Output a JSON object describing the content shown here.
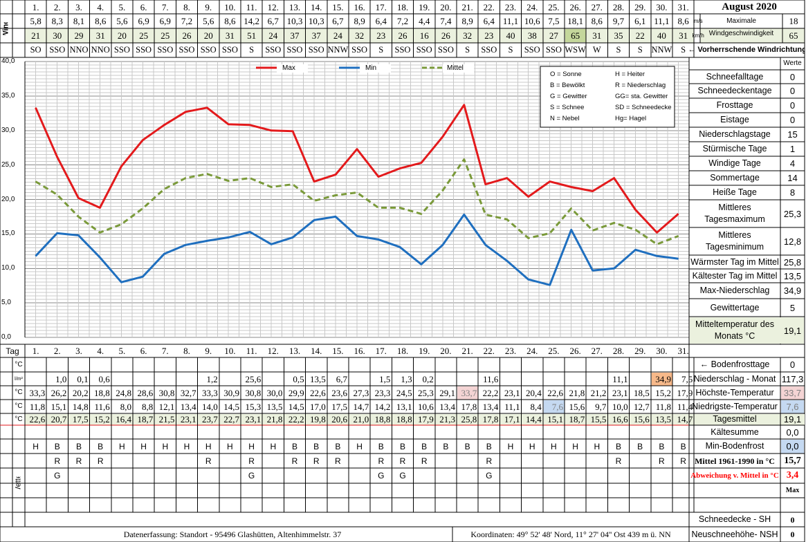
{
  "header": {
    "wind_label": "Wind",
    "days": [
      "1.",
      "2.",
      "3.",
      "4.",
      "5.",
      "6.",
      "7.",
      "8.",
      "9.",
      "10.",
      "11.",
      "12.",
      "13.",
      "14.",
      "15.",
      "16.",
      "17.",
      "18.",
      "19.",
      "20.",
      "21.",
      "22.",
      "23.",
      "24.",
      "25.",
      "26.",
      "27.",
      "28.",
      "29.",
      "30.",
      "31."
    ],
    "wind_ms": [
      "5,8",
      "8,3",
      "8,1",
      "8,6",
      "5,6",
      "6,9",
      "6,9",
      "7,2",
      "5,6",
      "8,6",
      "14,2",
      "6,7",
      "10,3",
      "10,3",
      "6,7",
      "8,9",
      "6,4",
      "7,2",
      "4,4",
      "7,4",
      "8,9",
      "6,4",
      "11,1",
      "10,6",
      "7,5",
      "18,1",
      "8,6",
      "9,7",
      "6,1",
      "11,1",
      "8,6"
    ],
    "wind_kmh": [
      "21",
      "30",
      "29",
      "31",
      "20",
      "25",
      "25",
      "26",
      "20",
      "31",
      "51",
      "24",
      "37",
      "37",
      "24",
      "32",
      "23",
      "26",
      "16",
      "26",
      "32",
      "23",
      "40",
      "38",
      "27",
      "65",
      "31",
      "35",
      "22",
      "40",
      "31"
    ],
    "wind_dir": [
      "SO",
      "SSO",
      "NNO",
      "NNO",
      "SSO",
      "SSO",
      "SSO",
      "SSO",
      "SSO",
      "SSO",
      "S",
      "SSO",
      "SSO",
      "SSO",
      "NNW",
      "SSO",
      "S",
      "SSO",
      "SSO",
      "SSO",
      "S",
      "SSO",
      "S",
      "SSO",
      "SSO",
      "WSW",
      "W",
      "S",
      "S",
      "NNW",
      "S"
    ],
    "title": "August 2020",
    "unit_ms": "m/s",
    "unit_kmh": "km/h",
    "max_wind_label_1": "Maximale",
    "max_wind_label_2": "Windgeschwindigkeit",
    "max_wind_ms": "18",
    "max_wind_kmh": "65",
    "prevailing_dir_label": "← Vorherrschende Windrichtung"
  },
  "legend": {
    "max": "Max",
    "min": "Min",
    "mittel": "Mittel",
    "codes": [
      [
        "O = Sonne",
        "H = Heiter"
      ],
      [
        "B = Bewölkt",
        "R = Niederschlag"
      ],
      [
        "G = Gewitter",
        "GG= sta. Gewitter"
      ],
      [
        "S = Schnee",
        "SD = Schneedecke"
      ],
      [
        "N = Nebel",
        "Hg= Hagel"
      ]
    ]
  },
  "chart_data": {
    "type": "line",
    "x": [
      1,
      2,
      3,
      4,
      5,
      6,
      7,
      8,
      9,
      10,
      11,
      12,
      13,
      14,
      15,
      16,
      17,
      18,
      19,
      20,
      21,
      22,
      23,
      24,
      25,
      26,
      27,
      28,
      29,
      30,
      31
    ],
    "xlabel": "Tag",
    "ylim": [
      0,
      40
    ],
    "yticks": [
      "0,0",
      "5,0",
      "10,0",
      "15,0",
      "20,0",
      "25,0",
      "30,0",
      "35,0",
      "40,0"
    ],
    "grid": true,
    "legend_position": "top",
    "series": [
      {
        "name": "Max",
        "color": "#e31a1c",
        "dashed": false,
        "values": [
          33.3,
          26.2,
          20.2,
          18.8,
          24.8,
          28.6,
          30.8,
          32.7,
          33.3,
          30.9,
          30.8,
          30.0,
          29.9,
          22.6,
          23.6,
          27.3,
          23.3,
          24.5,
          25.3,
          29.1,
          33.7,
          22.2,
          23.1,
          20.4,
          22.6,
          21.8,
          21.2,
          23.1,
          18.5,
          15.2,
          17.9
        ]
      },
      {
        "name": "Min",
        "color": "#1f6fbf",
        "dashed": false,
        "values": [
          11.8,
          15.1,
          14.8,
          11.6,
          8.0,
          8.8,
          12.1,
          13.4,
          14.0,
          14.5,
          15.3,
          13.5,
          14.5,
          17.0,
          17.5,
          14.7,
          14.2,
          13.1,
          10.6,
          13.4,
          17.8,
          13.4,
          11.1,
          8.4,
          7.6,
          15.6,
          9.7,
          10.0,
          12.7,
          11.8,
          11.4
        ]
      },
      {
        "name": "Mittel",
        "color": "#7a9a3a",
        "dashed": true,
        "values": [
          22.6,
          20.7,
          17.5,
          15.2,
          16.4,
          18.7,
          21.5,
          23.1,
          23.7,
          22.7,
          23.1,
          21.8,
          22.2,
          19.8,
          20.6,
          21.0,
          18.8,
          18.8,
          17.9,
          21.3,
          25.8,
          17.8,
          17.1,
          14.4,
          15.1,
          18.7,
          15.5,
          16.6,
          15.6,
          13.5,
          14.7
        ]
      }
    ]
  },
  "summary": {
    "werte_label": "Werte",
    "rows": [
      {
        "label": "Schneefalltage",
        "value": "0"
      },
      {
        "label": "Schneedeckentage",
        "value": "0"
      },
      {
        "label": "Frosttage",
        "value": "0"
      },
      {
        "label": "Eistage",
        "value": "0"
      },
      {
        "label": "Niederschlagstage",
        "value": "15"
      },
      {
        "label": "Stürmische Tage",
        "value": "1"
      },
      {
        "label": "Windige Tage",
        "value": "4"
      },
      {
        "label": "Sommertage",
        "value": "14"
      },
      {
        "label": "Heiße Tage",
        "value": "8"
      },
      {
        "label": "Mittleres\nTagesmaximum",
        "value": "25,3"
      },
      {
        "label": "Mittleres\nTagesminimum",
        "value": "12,8"
      },
      {
        "label": "Wärmster Tag im Mittel",
        "value": "25,8"
      },
      {
        "label": "Kältester Tag im Mittel",
        "value": "13,5"
      },
      {
        "label": "Max-Niederschlag",
        "value": "34,9"
      },
      {
        "label": "Gewittertage",
        "value": "5"
      },
      {
        "label": "Mitteltemperatur des\nMonats °C",
        "value": "19,1"
      }
    ]
  },
  "table": {
    "tag_label": "Tag",
    "days": [
      "1.",
      "2.",
      "3.",
      "4.",
      "5.",
      "6.",
      "7.",
      "8.",
      "9.",
      "10.",
      "11.",
      "12.",
      "13.",
      "14.",
      "15.",
      "16.",
      "17.",
      "18.",
      "19.",
      "20.",
      "21.",
      "22.",
      "23.",
      "24.",
      "25.",
      "26.",
      "27.",
      "28.",
      "29.",
      "30.",
      "31."
    ],
    "unit_c": "°C",
    "unit_lm2": "l/m²",
    "precip": [
      "",
      "1,0",
      "0,1",
      "0,6",
      "",
      "",
      "",
      "",
      "1,2",
      "",
      "25,6",
      "",
      "0,5",
      "13,5",
      "6,7",
      "",
      "1,5",
      "1,3",
      "0,2",
      "",
      "",
      "11,6",
      "",
      "",
      "",
      "",
      "",
      "11,1",
      "",
      "34,9",
      "7,5"
    ],
    "tmax": [
      "33,3",
      "26,2",
      "20,2",
      "18,8",
      "24,8",
      "28,6",
      "30,8",
      "32,7",
      "33,3",
      "30,9",
      "30,8",
      "30,0",
      "29,9",
      "22,6",
      "23,6",
      "27,3",
      "23,3",
      "24,5",
      "25,3",
      "29,1",
      "33,7",
      "22,2",
      "23,1",
      "20,4",
      "22,6",
      "21,8",
      "21,2",
      "23,1",
      "18,5",
      "15,2",
      "17,9"
    ],
    "tmin": [
      "11,8",
      "15,1",
      "14,8",
      "11,6",
      "8,0",
      "8,8",
      "12,1",
      "13,4",
      "14,0",
      "14,5",
      "15,3",
      "13,5",
      "14,5",
      "17,0",
      "17,5",
      "14,7",
      "14,2",
      "13,1",
      "10,6",
      "13,4",
      "17,8",
      "13,4",
      "11,1",
      "8,4",
      "7,6",
      "15,6",
      "9,7",
      "10,0",
      "12,7",
      "11,8",
      "11,4"
    ],
    "tmean": [
      "22,6",
      "20,7",
      "17,5",
      "15,2",
      "16,4",
      "18,7",
      "21,5",
      "23,1",
      "23,7",
      "22,7",
      "23,1",
      "21,8",
      "22,2",
      "19,8",
      "20,6",
      "21,0",
      "18,8",
      "18,8",
      "17,9",
      "21,3",
      "25,8",
      "17,8",
      "17,1",
      "14,4",
      "15,1",
      "18,7",
      "15,5",
      "16,6",
      "15,6",
      "13,5",
      "14,7"
    ],
    "weather1": [
      "H",
      "B",
      "B",
      "B",
      "H",
      "H",
      "H",
      "H",
      "H",
      "H",
      "H",
      "H",
      "B",
      "B",
      "B",
      "H",
      "B",
      "B",
      "B",
      "B",
      "B",
      "B",
      "H",
      "H",
      "H",
      "H",
      "H",
      "B",
      "B",
      "B",
      "B"
    ],
    "weather2": [
      "",
      "R",
      "R",
      "R",
      "",
      "",
      "",
      "",
      "R",
      "",
      "R",
      "",
      "R",
      "R",
      "R",
      "",
      "R",
      "R",
      "R",
      "",
      "",
      "R",
      "",
      "",
      "",
      "",
      "",
      "R",
      "",
      "R",
      "R"
    ],
    "weather3": [
      "",
      "G",
      "",
      "",
      "",
      "",
      "",
      "",
      "",
      "",
      "G",
      "",
      "",
      "",
      "",
      "",
      "G",
      "G",
      "",
      "",
      "",
      "G",
      "",
      "",
      "",
      "",
      "",
      "",
      "",
      "",
      ""
    ],
    "wetter_label": "Wetter",
    "right": {
      "bodenfrost_label": "← Bodenfrosttage",
      "bodenfrost_value": "0",
      "niederschlag_label": "Niederschlag - Monat",
      "niederschlag_value": "117,3",
      "hoechst_label": "Höchste-Temperatur",
      "hoechst_value": "33,7",
      "niedrigst_label": "Niedrigste-Temperatur",
      "niedrigst_value": "7,6",
      "tagesmittel_label": "Tagesmittel",
      "tagesmittel_value": "19,1",
      "kaeltesumme_label": "Kältesumme",
      "kaeltesumme_value": "0,0",
      "minboden_label": "Min-Bodenfrost",
      "minboden_value": "0,0",
      "mittel6190_label": "Mittel 1961-1990 in °C",
      "mittel6190_value": "15,7",
      "abweichung_label": "Abweichung v. Mittel in °C",
      "abweichung_value": "3,4",
      "max_label": "Max",
      "schneedecke_label": "Schneedecke -  SH",
      "schneedecke_value": "0",
      "neuschnee_label": "Neuschneehöhe- NSH",
      "neuschnee_value": "0"
    }
  },
  "footer": {
    "left": "Datenerfassung:  Standort -  95496  Glashütten, Altenhimmelstr. 37",
    "right": "Koordinaten:  49° 52' 48' Nord,   11° 27' 04'' Ost   439 m ü. NN"
  },
  "colors": {
    "green_cell": "#ebf1de",
    "green_highlight": "#c4d79b",
    "orange_cell": "#f7b98a",
    "pink_cell": "#f4d4d4",
    "blue_cell": "#c5d9f1",
    "red_text": "#ff0000"
  }
}
